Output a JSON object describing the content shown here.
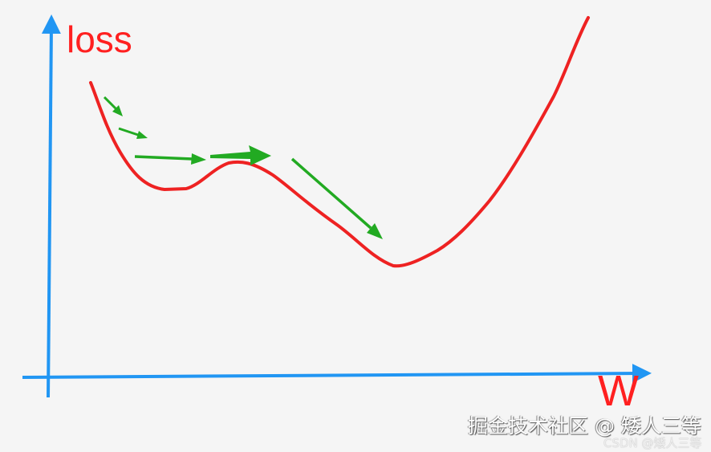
{
  "labels": {
    "y_axis": "loss",
    "x_axis": "W"
  },
  "watermarks": [
    "掘金技术社区 @ 矮人三等",
    "CSDN @矮人三等"
  ],
  "colors": {
    "axes": "#2196f3",
    "curve": "#ee2222",
    "steps": "#22aa22",
    "labels": "#ff2020"
  }
}
